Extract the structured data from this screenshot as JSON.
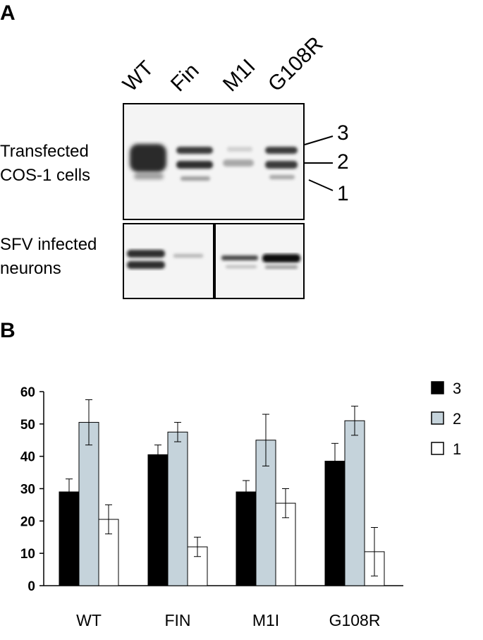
{
  "panel_a": {
    "letter": "A",
    "lanes": [
      "WT",
      "Fin",
      "M1I",
      "G108R"
    ],
    "blot1_label_line1": "Transfected",
    "blot1_label_line2": "COS-1 cells",
    "blot2_label_line1": "SFV infected",
    "blot2_label_line2": "neurons",
    "band_markers": [
      "3",
      "2",
      "1"
    ]
  },
  "panel_b": {
    "letter": "B"
  },
  "chart_data": {
    "type": "bar",
    "categories": [
      "WT",
      "FIN",
      "M1I",
      "G108R"
    ],
    "series": [
      {
        "name": "3",
        "color": "#000000",
        "values": [
          29,
          40.5,
          29,
          38.5
        ],
        "errors": [
          4,
          3,
          3.5,
          5.5
        ]
      },
      {
        "name": "2",
        "color": "#c5d3db",
        "values": [
          50.5,
          47.5,
          45,
          51
        ],
        "errors": [
          7,
          3,
          8,
          4.5
        ]
      },
      {
        "name": "1",
        "color": "#ffffff",
        "values": [
          20.5,
          12,
          25.5,
          10.5
        ],
        "errors": [
          4.5,
          3,
          4.5,
          7.5
        ]
      }
    ],
    "ylim": [
      0,
      60
    ],
    "yticks": [
      "0",
      "10",
      "20",
      "30",
      "40",
      "50",
      "60"
    ],
    "legend": "right",
    "grid": false
  }
}
